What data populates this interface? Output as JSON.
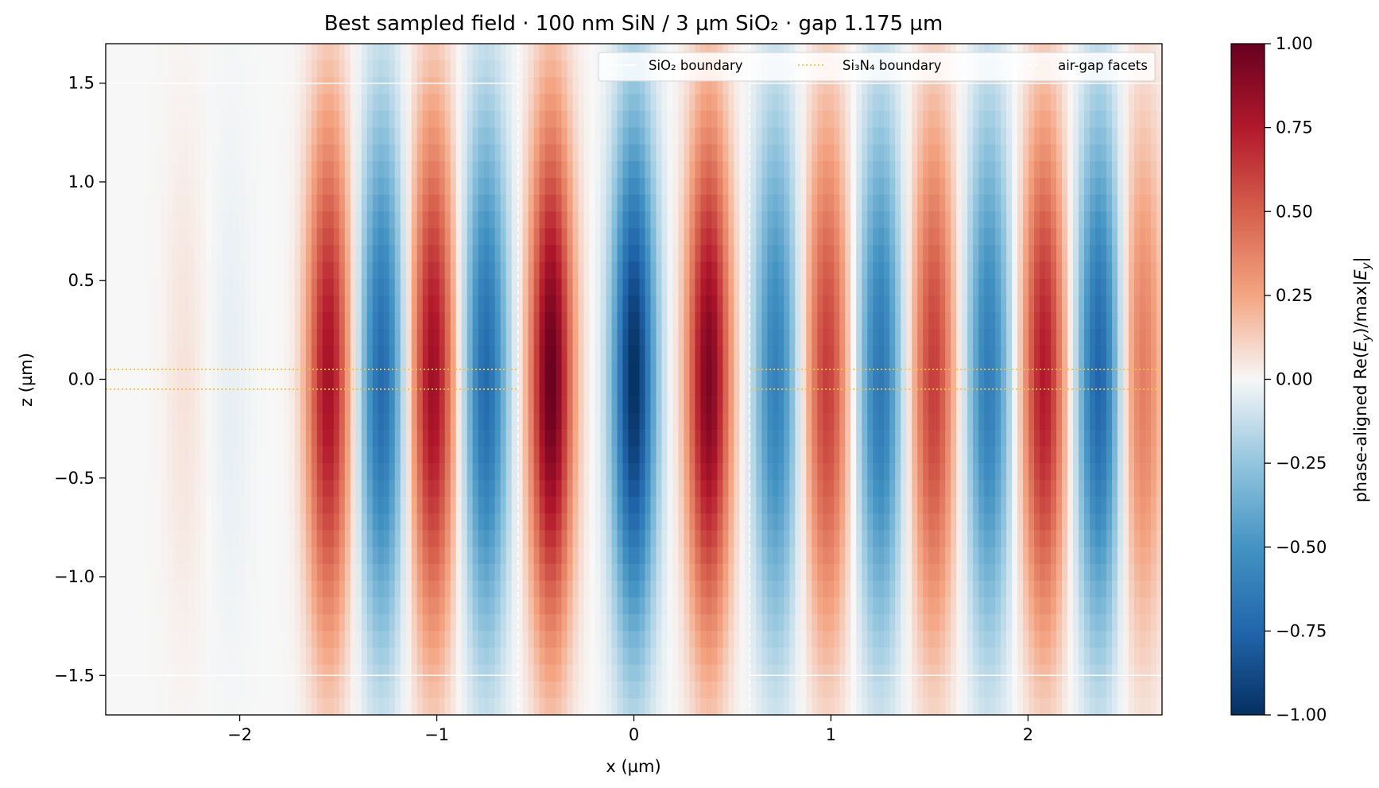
{
  "chart_data": {
    "type": "heatmap",
    "title": "Best sampled field · 100 nm SiN / 3 µm SiO₂ · gap 1.175 µm",
    "xlabel": "x (µm)",
    "ylabel": "z (µm)",
    "xlim": [
      -2.68,
      2.68
    ],
    "ylim": [
      -1.7,
      1.7
    ],
    "x_ticks": [
      -2,
      -1,
      0,
      1,
      2
    ],
    "x_tick_labels": [
      "−2",
      "−1",
      "0",
      "1",
      "2"
    ],
    "y_ticks": [
      1.5,
      1.0,
      0.5,
      0.0,
      -0.5,
      -1.0,
      -1.5
    ],
    "y_tick_labels": [
      "1.5",
      "1.0",
      "0.5",
      "0.0",
      "−0.5",
      "−1.0",
      "−1.5"
    ],
    "grid": false,
    "colormap": "RdBu_r",
    "colorbar": {
      "label": "phase-aligned Re(E_y)/max|E_y|",
      "label_prefix": "phase-aligned Re(",
      "label_E": "E",
      "label_sub": "y",
      "label_mid": ")/max|",
      "label_end": "|",
      "range": [
        -1.0,
        1.0
      ],
      "ticks": [
        1.0,
        0.75,
        0.5,
        0.25,
        0.0,
        -0.25,
        -0.5,
        -0.75,
        -1.0
      ],
      "tick_labels": [
        "1.00",
        "0.75",
        "0.50",
        "0.25",
        "0.00",
        "−0.25",
        "−0.50",
        "−0.75",
        "−1.00"
      ]
    },
    "legend": {
      "placement": "top-right",
      "entries": [
        {
          "label": "SiO₂ boundary",
          "style": "solid",
          "color": "#ffffff"
        },
        {
          "label": "Si₃N₄ boundary",
          "style": "dotted",
          "color": "#f5c242"
        },
        {
          "label": "air-gap facets",
          "style": "dashed",
          "color": "#ffffff"
        }
      ]
    },
    "boundaries": {
      "sio2_z": [
        1.5,
        -1.5
      ],
      "si3n4_z": [
        0.05,
        -0.05
      ],
      "airgap_facets_x": [
        -0.5875,
        0.5875
      ]
    },
    "field_peaks": [
      {
        "x": -2.28,
        "amplitude": 0.06
      },
      {
        "x": -2.05,
        "amplitude": -0.04
      },
      {
        "x": -1.55,
        "amplitude": 0.8
      },
      {
        "x": -1.28,
        "amplitude": -0.72
      },
      {
        "x": -1.02,
        "amplitude": 0.82
      },
      {
        "x": -0.75,
        "amplitude": -0.72
      },
      {
        "x": -0.42,
        "amplitude": 1.0
      },
      {
        "x": 0.0,
        "amplitude": -1.0
      },
      {
        "x": 0.38,
        "amplitude": 0.93
      },
      {
        "x": 0.72,
        "amplitude": -0.6
      },
      {
        "x": 0.98,
        "amplitude": 0.62
      },
      {
        "x": 1.25,
        "amplitude": -0.65
      },
      {
        "x": 1.52,
        "amplitude": 0.62
      },
      {
        "x": 1.8,
        "amplitude": -0.62
      },
      {
        "x": 2.08,
        "amplitude": 0.75
      },
      {
        "x": 2.36,
        "amplitude": -0.75
      },
      {
        "x": 2.58,
        "amplitude": 0.4
      }
    ],
    "colors": {
      "positive": "#67001f",
      "negative": "#053061",
      "neutral": "#f7f7f7"
    }
  }
}
